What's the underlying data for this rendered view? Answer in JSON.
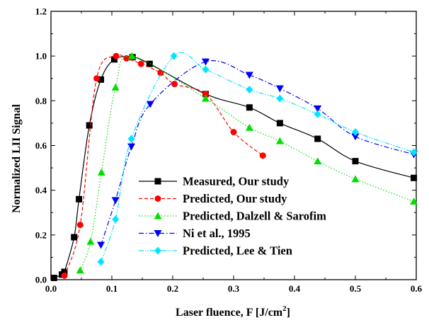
{
  "chart_data": {
    "type": "line",
    "xlabel": "Laser fluence, F [J/cm",
    "xlabel_sup": "2",
    "xlabel_close": "]",
    "ylabel": "Normalized LII Signal",
    "xlim": [
      0.0,
      0.6
    ],
    "ylim": [
      0.0,
      1.2
    ],
    "xticks": [
      0.0,
      0.1,
      0.2,
      0.3,
      0.4,
      0.5,
      0.6
    ],
    "xtick_labels": [
      "0.0",
      "0.1",
      "0.2",
      "0.3",
      "0.4",
      "0.5",
      "0.6"
    ],
    "yticks": [
      0.0,
      0.2,
      0.4,
      0.6,
      0.8,
      1.0,
      1.2
    ],
    "ytick_labels": [
      "0.0",
      "0.2",
      "0.4",
      "0.6",
      "0.8",
      "1.0",
      "1.2"
    ],
    "grid": false,
    "legend_position": "lower-center",
    "series": [
      {
        "name": "Measured, Our study",
        "color": "#000000",
        "marker": "square",
        "dash": "solid",
        "x": [
          0.005,
          0.018,
          0.022,
          0.038,
          0.046,
          0.063,
          0.082,
          0.104,
          0.134,
          0.162,
          0.254,
          0.326,
          0.376,
          0.438,
          0.5,
          0.596
        ],
        "y": [
          0.008,
          0.023,
          0.035,
          0.19,
          0.36,
          0.69,
          0.895,
          0.985,
          0.995,
          0.965,
          0.83,
          0.77,
          0.7,
          0.63,
          0.53,
          0.455
        ]
      },
      {
        "name": "Predicted, Our study",
        "color": "#ff0000",
        "marker": "circle",
        "dash": "dashed",
        "x": [
          0.022,
          0.048,
          0.075,
          0.107,
          0.124,
          0.148,
          0.18,
          0.203,
          0.254,
          0.3,
          0.348
        ],
        "y": [
          0.018,
          0.245,
          0.9,
          1.0,
          0.99,
          0.965,
          0.925,
          0.875,
          0.83,
          0.66,
          0.555
        ]
      },
      {
        "name": "Predicted, Dalzell & Sarofim",
        "color": "#00e000",
        "marker": "triangle-up",
        "dash": "dotted",
        "x": [
          0.048,
          0.065,
          0.083,
          0.106,
          0.133,
          0.254,
          0.326,
          0.376,
          0.438,
          0.5,
          0.596
        ],
        "y": [
          0.042,
          0.17,
          0.48,
          0.86,
          1.0,
          0.81,
          0.68,
          0.62,
          0.53,
          0.45,
          0.35
        ]
      },
      {
        "name": "Ni et al., 1995",
        "color": "#0000ff",
        "marker": "triangle-down",
        "dash": "dashdot",
        "x": [
          0.082,
          0.106,
          0.132,
          0.163,
          0.254,
          0.326,
          0.376,
          0.438,
          0.5,
          0.596
        ],
        "y": [
          0.155,
          0.355,
          0.595,
          0.785,
          0.975,
          0.915,
          0.855,
          0.765,
          0.64,
          0.56
        ]
      },
      {
        "name": "Predicted, Lee & Tien",
        "color": "#00e5ff",
        "marker": "diamond",
        "dash": "dashdotdot",
        "x": [
          0.082,
          0.106,
          0.132,
          0.202,
          0.254,
          0.326,
          0.376,
          0.438,
          0.5,
          0.596
        ],
        "y": [
          0.08,
          0.27,
          0.63,
          1.0,
          0.94,
          0.85,
          0.81,
          0.74,
          0.66,
          0.57
        ]
      }
    ]
  }
}
